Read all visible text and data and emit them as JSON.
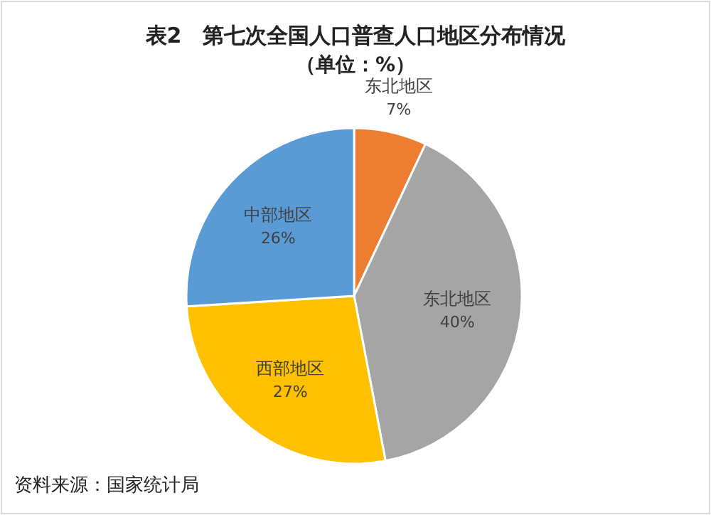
{
  "chart_data": {
    "type": "pie",
    "title": "表2　第七次全国人口普查人口地区分布情况",
    "subtitle": "（单位：%）",
    "categories": [
      "东北地区",
      "东北地区",
      "西部地区",
      "中部地区"
    ],
    "values": [
      7,
      40,
      27,
      26
    ],
    "value_labels": [
      "7%",
      "40%",
      "27%",
      "26%"
    ],
    "colors": [
      "#ed7d31",
      "#a5a5a5",
      "#ffc000",
      "#5b9bd5"
    ],
    "annotations": [
      "资料来源：国家统计局"
    ]
  }
}
